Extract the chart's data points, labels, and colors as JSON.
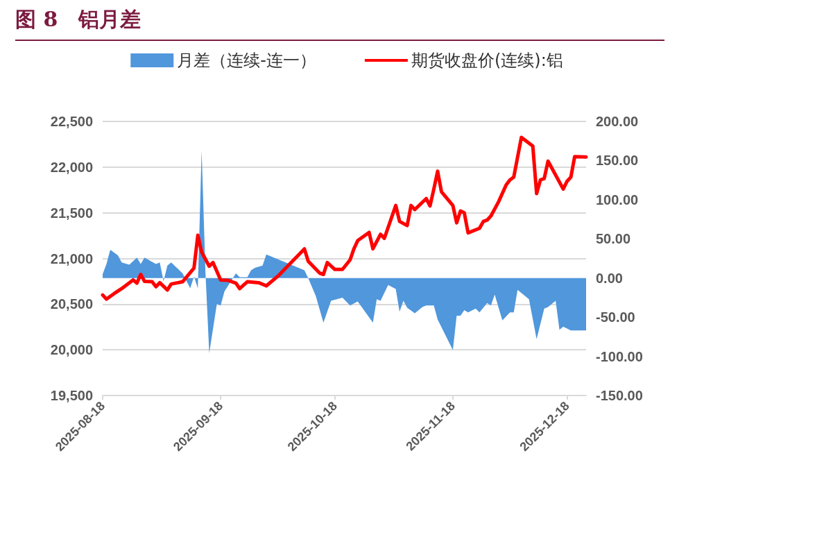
{
  "chart_data": {
    "type": "line",
    "title": "图 8　铝月差",
    "xlim": [
      "2025-08-18",
      "2025-12-23"
    ],
    "xticks": [
      "2025-08-18",
      "2025-09-18",
      "2025-10-18",
      "2025-11-18",
      "2025-12-18"
    ],
    "ylim": [
      19500,
      22500
    ],
    "yticks": [
      {
        "value": 19500,
        "label": "19,500"
      },
      {
        "value": 20000,
        "label": "20,000"
      },
      {
        "value": 20500,
        "label": "20,500"
      },
      {
        "value": 21000,
        "label": "21,000"
      },
      {
        "value": 21500,
        "label": "21,500"
      },
      {
        "value": 22000,
        "label": "22,000"
      },
      {
        "value": 22500,
        "label": "22,500"
      }
    ],
    "y2lim": [
      -150,
      200
    ],
    "y2ticks": [
      {
        "value": -150,
        "label": "-150.00"
      },
      {
        "value": -100,
        "label": "-100.00"
      },
      {
        "value": -50,
        "label": "-50.00"
      },
      {
        "value": 0,
        "label": "0.00"
      },
      {
        "value": 50,
        "label": "50.00"
      },
      {
        "value": 100,
        "label": "100.00"
      },
      {
        "value": 150,
        "label": "150.00"
      },
      {
        "value": 200,
        "label": "200.00"
      }
    ],
    "grid": "y",
    "legend": "top",
    "series": [
      {
        "name": "月差（连续-连一）",
        "type": "area",
        "axis": "y2",
        "color": "#5097dc",
        "x": [
          "2025-08-18",
          "2025-08-19",
          "2025-08-20",
          "2025-08-22",
          "2025-08-23",
          "2025-08-25",
          "2025-08-27",
          "2025-08-28",
          "2025-08-29",
          "2025-09-01",
          "2025-09-02",
          "2025-09-03",
          "2025-09-04",
          "2025-09-05",
          "2025-09-08",
          "2025-09-10",
          "2025-09-11",
          "2025-09-12",
          "2025-09-13",
          "2025-09-14",
          "2025-09-15",
          "2025-09-17",
          "2025-09-18",
          "2025-09-19",
          "2025-09-22",
          "2025-09-23",
          "2025-09-25",
          "2025-09-26",
          "2025-09-27",
          "2025-09-29",
          "2025-09-30",
          "2025-10-10",
          "2025-10-11",
          "2025-10-13",
          "2025-10-15",
          "2025-10-17",
          "2025-10-20",
          "2025-10-22",
          "2025-10-24",
          "2025-10-28",
          "2025-10-29",
          "2025-10-30",
          "2025-11-01",
          "2025-11-03",
          "2025-11-04",
          "2025-11-05",
          "2025-11-06",
          "2025-11-08",
          "2025-11-10",
          "2025-11-11",
          "2025-11-13",
          "2025-11-14",
          "2025-11-18",
          "2025-11-19",
          "2025-11-20",
          "2025-11-21",
          "2025-11-22",
          "2025-11-24",
          "2025-11-25",
          "2025-11-27",
          "2025-11-28",
          "2025-11-29",
          "2025-12-01",
          "2025-12-03",
          "2025-12-04",
          "2025-12-05",
          "2025-12-08",
          "2025-12-10",
          "2025-12-12",
          "2025-12-13",
          "2025-12-15",
          "2025-12-16",
          "2025-12-17",
          "2025-12-19",
          "2025-12-23"
        ],
        "values": [
          5,
          18,
          36,
          29,
          20,
          17,
          26,
          18,
          26,
          18,
          20,
          -4,
          16,
          20,
          6,
          -13,
          2,
          -13,
          163,
          8,
          -96,
          -33,
          -35,
          -17,
          6,
          1,
          1,
          10,
          13,
          16,
          30,
          10,
          0,
          -23,
          -57,
          -29,
          -25,
          -35,
          -30,
          -57,
          -27,
          -29,
          -9,
          -14,
          -43,
          -29,
          -38,
          -45,
          -37,
          -35,
          -35,
          -53,
          -92,
          -48,
          -48,
          -41,
          -44,
          -39,
          -44,
          -32,
          -35,
          -21,
          -54,
          -44,
          -44,
          -15,
          -27,
          -78,
          -39,
          -37,
          -29,
          -66,
          -62,
          -67,
          -67
        ]
      },
      {
        "name": "期货收盘价(连续):铝",
        "color": "#ff0000",
        "x": [
          "2025-08-18",
          "2025-08-19",
          "2025-08-21",
          "2025-08-23",
          "2025-08-26",
          "2025-08-27",
          "2025-08-28",
          "2025-08-29",
          "2025-08-31",
          "2025-09-01",
          "2025-09-02",
          "2025-09-04",
          "2025-09-05",
          "2025-09-08",
          "2025-09-11",
          "2025-09-12",
          "2025-09-13",
          "2025-09-15",
          "2025-09-16",
          "2025-09-18",
          "2025-09-20",
          "2025-09-22",
          "2025-09-23",
          "2025-09-25",
          "2025-09-28",
          "2025-09-30",
          "2025-10-03",
          "2025-10-10",
          "2025-10-11",
          "2025-10-14",
          "2025-10-15",
          "2025-10-16",
          "2025-10-18",
          "2025-10-20",
          "2025-10-22",
          "2025-10-23",
          "2025-10-24",
          "2025-10-27",
          "2025-10-28",
          "2025-10-30",
          "2025-10-31",
          "2025-11-03",
          "2025-11-04",
          "2025-11-06",
          "2025-11-07",
          "2025-11-08",
          "2025-11-11",
          "2025-11-12",
          "2025-11-13",
          "2025-11-14",
          "2025-11-15",
          "2025-11-18",
          "2025-11-19",
          "2025-11-20",
          "2025-11-21",
          "2025-11-22",
          "2025-11-25",
          "2025-11-26",
          "2025-11-27",
          "2025-11-28",
          "2025-11-30",
          "2025-12-02",
          "2025-12-03",
          "2025-12-04",
          "2025-12-06",
          "2025-12-09",
          "2025-12-10",
          "2025-12-11",
          "2025-12-12",
          "2025-12-13",
          "2025-12-17",
          "2025-12-18",
          "2025-12-19",
          "2025-12-20",
          "2025-12-23"
        ],
        "values": [
          20600,
          20555,
          20615,
          20670,
          20765,
          20730,
          20825,
          20750,
          20745,
          20690,
          20735,
          20655,
          20720,
          20745,
          20895,
          21255,
          21070,
          20915,
          20955,
          20765,
          20760,
          20730,
          20670,
          20745,
          20735,
          20700,
          20805,
          21105,
          20970,
          20840,
          20825,
          20955,
          20880,
          20880,
          20985,
          21105,
          21195,
          21285,
          21105,
          21265,
          21220,
          21580,
          21405,
          21360,
          21580,
          21535,
          21655,
          21575,
          21760,
          21955,
          21730,
          21580,
          21390,
          21520,
          21500,
          21280,
          21330,
          21405,
          21420,
          21465,
          21620,
          21805,
          21860,
          21890,
          22325,
          22230,
          21710,
          21860,
          21875,
          22065,
          21760,
          21845,
          21890,
          22115,
          22110
        ]
      }
    ]
  }
}
